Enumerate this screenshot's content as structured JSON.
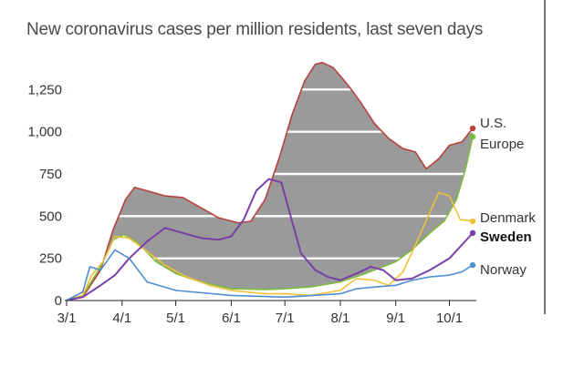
{
  "chart_data": {
    "type": "line",
    "title": "New coronavirus cases per million residents, last seven days",
    "xlabel": "",
    "ylabel": "",
    "ylim": [
      0,
      1500
    ],
    "xlim": [
      "2020-03-01",
      "2020-10-15"
    ],
    "y_ticks": [
      0,
      250,
      500,
      750,
      1000,
      1250
    ],
    "y_tick_labels": [
      "0",
      "250",
      "500",
      "750",
      "1,000",
      "1,250"
    ],
    "x_ticks": [
      "2020-03-01",
      "2020-04-01",
      "2020-05-01",
      "2020-06-01",
      "2020-07-01",
      "2020-08-01",
      "2020-09-01",
      "2020-10-01"
    ],
    "x_tick_labels": [
      "3/1",
      "4/1",
      "5/1",
      "6/1",
      "7/1",
      "8/1",
      "9/1",
      "10/1"
    ],
    "grid": true,
    "shaded_gap": {
      "between": [
        "U.S.",
        "Europe"
      ],
      "color": "#9a9a9a"
    },
    "series": [
      {
        "name": "U.S.",
        "color": "#b8413f",
        "bold": false,
        "x": [
          "2020-03-01",
          "2020-03-10",
          "2020-03-20",
          "2020-03-27",
          "2020-04-03",
          "2020-04-08",
          "2020-04-15",
          "2020-04-25",
          "2020-05-05",
          "2020-05-15",
          "2020-05-25",
          "2020-06-05",
          "2020-06-12",
          "2020-06-20",
          "2020-06-28",
          "2020-07-05",
          "2020-07-12",
          "2020-07-18",
          "2020-07-22",
          "2020-07-28",
          "2020-08-05",
          "2020-08-12",
          "2020-08-20",
          "2020-08-28",
          "2020-09-05",
          "2020-09-12",
          "2020-09-18",
          "2020-09-25",
          "2020-10-01",
          "2020-10-08",
          "2020-10-14"
        ],
        "y": [
          2,
          20,
          180,
          420,
          600,
          670,
          650,
          620,
          610,
          550,
          490,
          460,
          470,
          600,
          850,
          1100,
          1300,
          1400,
          1410,
          1380,
          1280,
          1180,
          1050,
          960,
          900,
          880,
          780,
          840,
          920,
          940,
          1020
        ]
      },
      {
        "name": "Europe",
        "color": "#7cbd3c",
        "bold": false,
        "x": [
          "2020-03-01",
          "2020-03-10",
          "2020-03-20",
          "2020-03-27",
          "2020-04-02",
          "2020-04-10",
          "2020-04-20",
          "2020-05-01",
          "2020-05-15",
          "2020-06-01",
          "2020-06-20",
          "2020-07-01",
          "2020-07-15",
          "2020-08-01",
          "2020-08-15",
          "2020-09-01",
          "2020-09-10",
          "2020-09-20",
          "2020-09-28",
          "2020-10-05",
          "2020-10-10",
          "2020-10-14"
        ],
        "y": [
          2,
          30,
          200,
          360,
          390,
          340,
          230,
          160,
          110,
          70,
          65,
          70,
          80,
          110,
          160,
          230,
          300,
          400,
          470,
          600,
          780,
          970
        ]
      },
      {
        "name": "Denmark",
        "color": "#eec13a",
        "bold": false,
        "x": [
          "2020-03-01",
          "2020-03-10",
          "2020-03-15",
          "2020-03-22",
          "2020-03-28",
          "2020-04-05",
          "2020-04-15",
          "2020-04-25",
          "2020-05-05",
          "2020-05-20",
          "2020-06-01",
          "2020-06-20",
          "2020-07-01",
          "2020-07-15",
          "2020-08-01",
          "2020-08-10",
          "2020-08-20",
          "2020-08-28",
          "2020-09-05",
          "2020-09-12",
          "2020-09-20",
          "2020-09-25",
          "2020-10-01",
          "2020-10-07",
          "2020-10-14"
        ],
        "y": [
          2,
          30,
          150,
          240,
          380,
          370,
          290,
          210,
          150,
          90,
          60,
          40,
          40,
          30,
          60,
          130,
          120,
          90,
          170,
          330,
          520,
          640,
          620,
          480,
          470
        ]
      },
      {
        "name": "Sweden",
        "color": "#7b3fa8",
        "bold": true,
        "x": [
          "2020-03-01",
          "2020-03-10",
          "2020-03-20",
          "2020-03-28",
          "2020-04-05",
          "2020-04-15",
          "2020-04-25",
          "2020-05-05",
          "2020-05-15",
          "2020-05-25",
          "2020-06-01",
          "2020-06-08",
          "2020-06-15",
          "2020-06-22",
          "2020-06-29",
          "2020-07-05",
          "2020-07-10",
          "2020-07-18",
          "2020-07-25",
          "2020-08-01",
          "2020-08-10",
          "2020-08-18",
          "2020-08-25",
          "2020-09-01",
          "2020-09-10",
          "2020-09-20",
          "2020-10-01",
          "2020-10-08",
          "2020-10-14"
        ],
        "y": [
          2,
          20,
          90,
          150,
          250,
          350,
          430,
          400,
          370,
          360,
          380,
          480,
          650,
          720,
          700,
          470,
          280,
          180,
          140,
          120,
          160,
          200,
          180,
          120,
          130,
          180,
          250,
          330,
          400
        ]
      },
      {
        "name": "Norway",
        "color": "#4d8fd1",
        "bold": false,
        "x": [
          "2020-03-01",
          "2020-03-10",
          "2020-03-14",
          "2020-03-20",
          "2020-03-28",
          "2020-04-05",
          "2020-04-15",
          "2020-05-01",
          "2020-06-01",
          "2020-07-01",
          "2020-08-01",
          "2020-08-10",
          "2020-08-20",
          "2020-09-01",
          "2020-09-10",
          "2020-09-20",
          "2020-10-01",
          "2020-10-08",
          "2020-10-14"
        ],
        "y": [
          2,
          50,
          200,
          180,
          300,
          250,
          110,
          60,
          30,
          20,
          40,
          70,
          80,
          90,
          120,
          140,
          150,
          170,
          210
        ]
      }
    ]
  }
}
